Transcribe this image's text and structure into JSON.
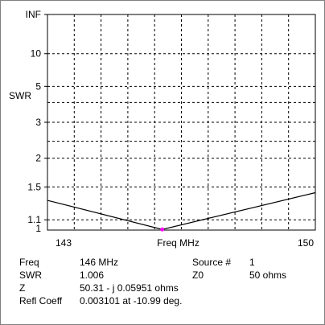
{
  "colors": {
    "trace": "#000000",
    "marker": "#ff00ff",
    "grid": "#000000",
    "frame": "#808080"
  },
  "chart_data": {
    "type": "line",
    "title": "",
    "xlabel": "Freq MHz",
    "ylabel": "SWR",
    "x_range": [
      143,
      150
    ],
    "x_tick_labels": [
      "143",
      "150"
    ],
    "y_scale": "swr (reflection-coefficient, 1 to infinity)",
    "y_tick_labels": [
      "INF",
      "10",
      "5",
      "3",
      "2",
      "1.5",
      "1.1",
      "1"
    ],
    "grid": true,
    "series": [
      {
        "x": [
          143,
          146,
          150
        ],
        "y": [
          1.32,
          1.006,
          1.42
        ]
      }
    ],
    "marker": {
      "x": 146,
      "y": 1.006
    }
  },
  "readout": {
    "freq_label": "Freq",
    "freq_value": "146 MHz",
    "source_label": "Source #",
    "source_value": "1",
    "swr_label": "SWR",
    "swr_value": "1.006",
    "z0_label": "Z0",
    "z0_value": "50 ohms",
    "z_label": "Z",
    "z_value": "50.31 - j 0.05951 ohms",
    "refl_label": "Refl Coeff",
    "refl_value": "0.003101 at -10.99 deg."
  }
}
